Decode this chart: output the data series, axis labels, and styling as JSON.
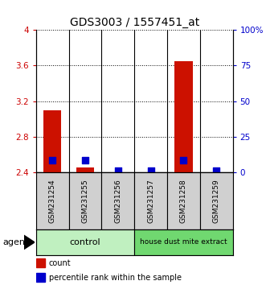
{
  "title": "GDS3003 / 1557451_at",
  "samples": [
    "GSM231254",
    "GSM231255",
    "GSM231256",
    "GSM231257",
    "GSM231258",
    "GSM231259"
  ],
  "count_values": [
    3.1,
    2.46,
    2.4,
    2.4,
    3.65,
    2.4
  ],
  "percentile_values": [
    8.5,
    8.5,
    1.5,
    1.5,
    8.5,
    1.5
  ],
  "count_base": 2.4,
  "ylim_left": [
    2.4,
    4.0
  ],
  "ylim_right": [
    0,
    100
  ],
  "yticks_left": [
    2.4,
    2.8,
    3.2,
    3.6,
    4.0
  ],
  "ytick_labels_left": [
    "2.4",
    "2.8",
    "3.2",
    "3.6",
    "4"
  ],
  "yticks_right": [
    0,
    25,
    50,
    75,
    100
  ],
  "ytick_labels_right": [
    "0",
    "25",
    "50",
    "75",
    "100%"
  ],
  "groups": [
    {
      "label": "control",
      "indices": [
        0,
        1,
        2
      ],
      "color": "#c0f0c0"
    },
    {
      "label": "house dust mite extract",
      "indices": [
        3,
        4,
        5
      ],
      "color": "#70d870"
    }
  ],
  "bar_color": "#cc1100",
  "percentile_color": "#0000cc",
  "bar_width": 0.55,
  "percentile_size": 28,
  "grid_color": "#000000",
  "label_color_left": "#cc0000",
  "label_color_right": "#0000cc",
  "agent_label": "agent",
  "legend_count": "count",
  "legend_percentile": "percentile rank within the sample",
  "sample_box_color": "#d0d0d0",
  "title_fontsize": 10,
  "tick_fontsize": 7.5,
  "sample_fontsize": 6.5,
  "group_fontsize_large": 8,
  "group_fontsize_small": 6.5,
  "legend_fontsize": 7
}
